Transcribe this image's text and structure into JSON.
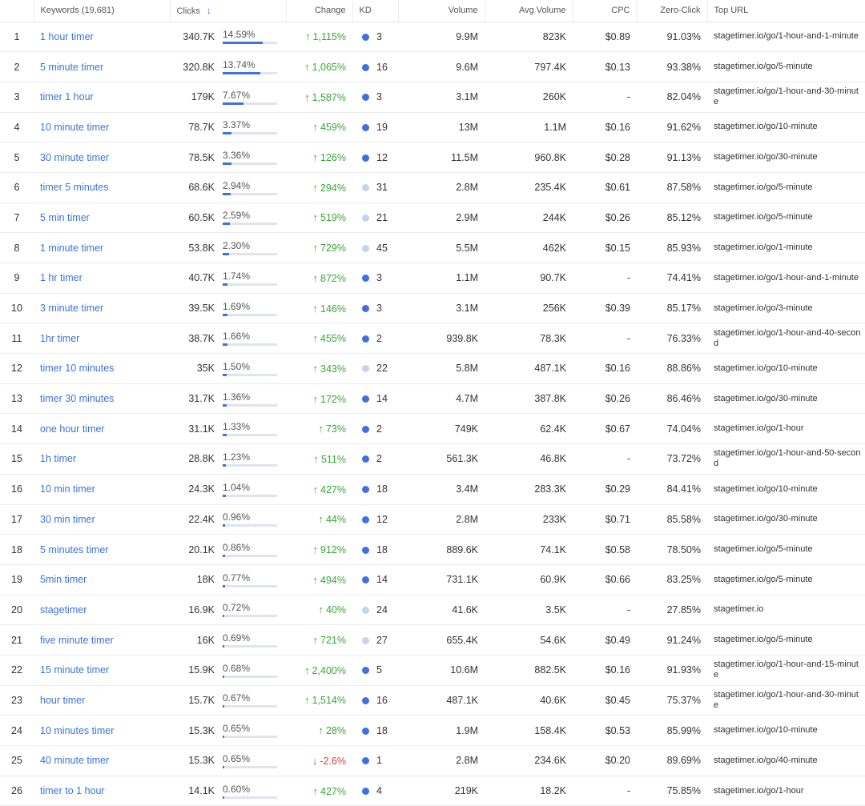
{
  "colors": {
    "link": "#3b73d9",
    "up": "#3aa63a",
    "down": "#e0393d",
    "bar": "#3f6fe0",
    "kd_dark": "#3f6fe0",
    "kd_light": "#c5d3f3"
  },
  "header": {
    "rank": "",
    "keywords": "Keywords (19,681)",
    "clicks": "Clicks",
    "sort_icon": "arrow-down-icon",
    "change": "Change",
    "kd": "KD",
    "volume": "Volume",
    "avg_volume": "Avg Volume",
    "cpc": "CPC",
    "zero_click": "Zero-Click",
    "top_url": "Top URL"
  },
  "rows": [
    {
      "rank": "1",
      "keyword": "1 hour timer",
      "clicks": "340.7K",
      "share": "14.59%",
      "share_value": 14.59,
      "dir": "up",
      "arrow": "🡑",
      "change": "1,115%",
      "kd_level": "dark",
      "kd": "3",
      "volume": "9.9M",
      "avg_volume": "823K",
      "cpc": "$0.89",
      "zero_click": "91.03%",
      "url": "stagetimer.io/go/1-hour-and-1-minute"
    },
    {
      "rank": "2",
      "keyword": "5 minute timer",
      "clicks": "320.8K",
      "share": "13.74%",
      "share_value": 13.74,
      "dir": "up",
      "arrow": "🡑",
      "change": "1,065%",
      "kd_level": "dark",
      "kd": "16",
      "volume": "9.6M",
      "avg_volume": "797.4K",
      "cpc": "$0.13",
      "zero_click": "93.38%",
      "url": "stagetimer.io/go/5-minute"
    },
    {
      "rank": "3",
      "keyword": "timer 1 hour",
      "clicks": "179K",
      "share": "7.67%",
      "share_value": 7.67,
      "dir": "up",
      "arrow": "🡑",
      "change": "1,587%",
      "kd_level": "dark",
      "kd": "3",
      "volume": "3.1M",
      "avg_volume": "260K",
      "cpc": "-",
      "zero_click": "82.04%",
      "url": "stagetimer.io/go/1-hour-and-30-minute"
    },
    {
      "rank": "4",
      "keyword": "10 minute timer",
      "clicks": "78.7K",
      "share": "3.37%",
      "share_value": 3.37,
      "dir": "up",
      "arrow": "🡑",
      "change": "459%",
      "kd_level": "dark",
      "kd": "19",
      "volume": "13M",
      "avg_volume": "1.1M",
      "cpc": "$0.16",
      "zero_click": "91.62%",
      "url": "stagetimer.io/go/10-minute"
    },
    {
      "rank": "5",
      "keyword": "30 minute timer",
      "clicks": "78.5K",
      "share": "3.36%",
      "share_value": 3.36,
      "dir": "up",
      "arrow": "🡑",
      "change": "126%",
      "kd_level": "dark",
      "kd": "12",
      "volume": "11.5M",
      "avg_volume": "960.8K",
      "cpc": "$0.28",
      "zero_click": "91.13%",
      "url": "stagetimer.io/go/30-minute"
    },
    {
      "rank": "6",
      "keyword": "timer 5 minutes",
      "clicks": "68.6K",
      "share": "2.94%",
      "share_value": 2.94,
      "dir": "up",
      "arrow": "🡑",
      "change": "294%",
      "kd_level": "light",
      "kd": "31",
      "volume": "2.8M",
      "avg_volume": "235.4K",
      "cpc": "$0.61",
      "zero_click": "87.58%",
      "url": "stagetimer.io/go/5-minute"
    },
    {
      "rank": "7",
      "keyword": "5 min timer",
      "clicks": "60.5K",
      "share": "2.59%",
      "share_value": 2.59,
      "dir": "up",
      "arrow": "🡑",
      "change": "519%",
      "kd_level": "light",
      "kd": "21",
      "volume": "2.9M",
      "avg_volume": "244K",
      "cpc": "$0.26",
      "zero_click": "85.12%",
      "url": "stagetimer.io/go/5-minute"
    },
    {
      "rank": "8",
      "keyword": "1 minute timer",
      "clicks": "53.8K",
      "share": "2.30%",
      "share_value": 2.3,
      "dir": "up",
      "arrow": "🡑",
      "change": "729%",
      "kd_level": "light",
      "kd": "45",
      "volume": "5.5M",
      "avg_volume": "462K",
      "cpc": "$0.15",
      "zero_click": "85.93%",
      "url": "stagetimer.io/go/1-minute"
    },
    {
      "rank": "9",
      "keyword": "1 hr timer",
      "clicks": "40.7K",
      "share": "1.74%",
      "share_value": 1.74,
      "dir": "up",
      "arrow": "🡑",
      "change": "872%",
      "kd_level": "dark",
      "kd": "3",
      "volume": "1.1M",
      "avg_volume": "90.7K",
      "cpc": "-",
      "zero_click": "74.41%",
      "url": "stagetimer.io/go/1-hour-and-1-minute"
    },
    {
      "rank": "10",
      "keyword": "3 minute timer",
      "clicks": "39.5K",
      "share": "1.69%",
      "share_value": 1.69,
      "dir": "up",
      "arrow": "🡑",
      "change": "146%",
      "kd_level": "dark",
      "kd": "3",
      "volume": "3.1M",
      "avg_volume": "256K",
      "cpc": "$0.39",
      "zero_click": "85.17%",
      "url": "stagetimer.io/go/3-minute"
    },
    {
      "rank": "11",
      "keyword": "1hr timer",
      "clicks": "38.7K",
      "share": "1.66%",
      "share_value": 1.66,
      "dir": "up",
      "arrow": "🡑",
      "change": "455%",
      "kd_level": "dark",
      "kd": "2",
      "volume": "939.8K",
      "avg_volume": "78.3K",
      "cpc": "-",
      "zero_click": "76.33%",
      "url": "stagetimer.io/go/1-hour-and-40-second"
    },
    {
      "rank": "12",
      "keyword": "timer 10 minutes",
      "clicks": "35K",
      "share": "1.50%",
      "share_value": 1.5,
      "dir": "up",
      "arrow": "🡑",
      "change": "343%",
      "kd_level": "light",
      "kd": "22",
      "volume": "5.8M",
      "avg_volume": "487.1K",
      "cpc": "$0.16",
      "zero_click": "88.86%",
      "url": "stagetimer.io/go/10-minute"
    },
    {
      "rank": "13",
      "keyword": "timer 30 minutes",
      "clicks": "31.7K",
      "share": "1.36%",
      "share_value": 1.36,
      "dir": "up",
      "arrow": "🡑",
      "change": "172%",
      "kd_level": "dark",
      "kd": "14",
      "volume": "4.7M",
      "avg_volume": "387.8K",
      "cpc": "$0.26",
      "zero_click": "86.46%",
      "url": "stagetimer.io/go/30-minute"
    },
    {
      "rank": "14",
      "keyword": "one hour timer",
      "clicks": "31.1K",
      "share": "1.33%",
      "share_value": 1.33,
      "dir": "up",
      "arrow": "🡑",
      "change": "73%",
      "kd_level": "dark",
      "kd": "2",
      "volume": "749K",
      "avg_volume": "62.4K",
      "cpc": "$0.67",
      "zero_click": "74.04%",
      "url": "stagetimer.io/go/1-hour"
    },
    {
      "rank": "15",
      "keyword": "1h timer",
      "clicks": "28.8K",
      "share": "1.23%",
      "share_value": 1.23,
      "dir": "up",
      "arrow": "🡑",
      "change": "511%",
      "kd_level": "dark",
      "kd": "2",
      "volume": "561.3K",
      "avg_volume": "46.8K",
      "cpc": "-",
      "zero_click": "73.72%",
      "url": "stagetimer.io/go/1-hour-and-50-second"
    },
    {
      "rank": "16",
      "keyword": "10 min timer",
      "clicks": "24.3K",
      "share": "1.04%",
      "share_value": 1.04,
      "dir": "up",
      "arrow": "🡑",
      "change": "427%",
      "kd_level": "dark",
      "kd": "18",
      "volume": "3.4M",
      "avg_volume": "283.3K",
      "cpc": "$0.29",
      "zero_click": "84.41%",
      "url": "stagetimer.io/go/10-minute"
    },
    {
      "rank": "17",
      "keyword": "30 min timer",
      "clicks": "22.4K",
      "share": "0.96%",
      "share_value": 0.96,
      "dir": "up",
      "arrow": "🡑",
      "change": "44%",
      "kd_level": "dark",
      "kd": "12",
      "volume": "2.8M",
      "avg_volume": "233K",
      "cpc": "$0.71",
      "zero_click": "85.58%",
      "url": "stagetimer.io/go/30-minute"
    },
    {
      "rank": "18",
      "keyword": "5 minutes timer",
      "clicks": "20.1K",
      "share": "0.86%",
      "share_value": 0.86,
      "dir": "up",
      "arrow": "🡑",
      "change": "912%",
      "kd_level": "dark",
      "kd": "18",
      "volume": "889.6K",
      "avg_volume": "74.1K",
      "cpc": "$0.58",
      "zero_click": "78.50%",
      "url": "stagetimer.io/go/5-minute"
    },
    {
      "rank": "19",
      "keyword": "5min timer",
      "clicks": "18K",
      "share": "0.77%",
      "share_value": 0.77,
      "dir": "up",
      "arrow": "🡑",
      "change": "494%",
      "kd_level": "dark",
      "kd": "14",
      "volume": "731.1K",
      "avg_volume": "60.9K",
      "cpc": "$0.66",
      "zero_click": "83.25%",
      "url": "stagetimer.io/go/5-minute"
    },
    {
      "rank": "20",
      "keyword": "stagetimer",
      "clicks": "16.9K",
      "share": "0.72%",
      "share_value": 0.72,
      "dir": "up",
      "arrow": "🡑",
      "change": "40%",
      "kd_level": "light",
      "kd": "24",
      "volume": "41.6K",
      "avg_volume": "3.5K",
      "cpc": "-",
      "zero_click": "27.85%",
      "url": "stagetimer.io"
    },
    {
      "rank": "21",
      "keyword": "five minute timer",
      "clicks": "16K",
      "share": "0.69%",
      "share_value": 0.69,
      "dir": "up",
      "arrow": "🡑",
      "change": "721%",
      "kd_level": "light",
      "kd": "27",
      "volume": "655.4K",
      "avg_volume": "54.6K",
      "cpc": "$0.49",
      "zero_click": "91.24%",
      "url": "stagetimer.io/go/5-minute"
    },
    {
      "rank": "22",
      "keyword": "15 minute timer",
      "clicks": "15.9K",
      "share": "0.68%",
      "share_value": 0.68,
      "dir": "up",
      "arrow": "🡑",
      "change": "2,400%",
      "kd_level": "dark",
      "kd": "5",
      "volume": "10.6M",
      "avg_volume": "882.5K",
      "cpc": "$0.16",
      "zero_click": "91.93%",
      "url": "stagetimer.io/go/1-hour-and-15-minute"
    },
    {
      "rank": "23",
      "keyword": "hour timer",
      "clicks": "15.7K",
      "share": "0.67%",
      "share_value": 0.67,
      "dir": "up",
      "arrow": "🡑",
      "change": "1,514%",
      "kd_level": "dark",
      "kd": "16",
      "volume": "487.1K",
      "avg_volume": "40.6K",
      "cpc": "$0.45",
      "zero_click": "75.37%",
      "url": "stagetimer.io/go/1-hour-and-30-minute"
    },
    {
      "rank": "24",
      "keyword": "10 minutes timer",
      "clicks": "15.3K",
      "share": "0.65%",
      "share_value": 0.65,
      "dir": "up",
      "arrow": "🡑",
      "change": "28%",
      "kd_level": "dark",
      "kd": "18",
      "volume": "1.9M",
      "avg_volume": "158.4K",
      "cpc": "$0.53",
      "zero_click": "85.99%",
      "url": "stagetimer.io/go/10-minute"
    },
    {
      "rank": "25",
      "keyword": "40 minute timer",
      "clicks": "15.3K",
      "share": "0.65%",
      "share_value": 0.65,
      "dir": "down",
      "arrow": "🡓",
      "change": "-2.6%",
      "kd_level": "dark",
      "kd": "1",
      "volume": "2.8M",
      "avg_volume": "234.6K",
      "cpc": "$0.20",
      "zero_click": "89.69%",
      "url": "stagetimer.io/go/40-minute"
    },
    {
      "rank": "26",
      "keyword": "timer to 1 hour",
      "clicks": "14.1K",
      "share": "0.60%",
      "share_value": 0.6,
      "dir": "up",
      "arrow": "🡑",
      "change": "427%",
      "kd_level": "dark",
      "kd": "4",
      "volume": "219K",
      "avg_volume": "18.2K",
      "cpc": "-",
      "zero_click": "75.85%",
      "url": "stagetimer.io/go/1-hour"
    }
  ]
}
